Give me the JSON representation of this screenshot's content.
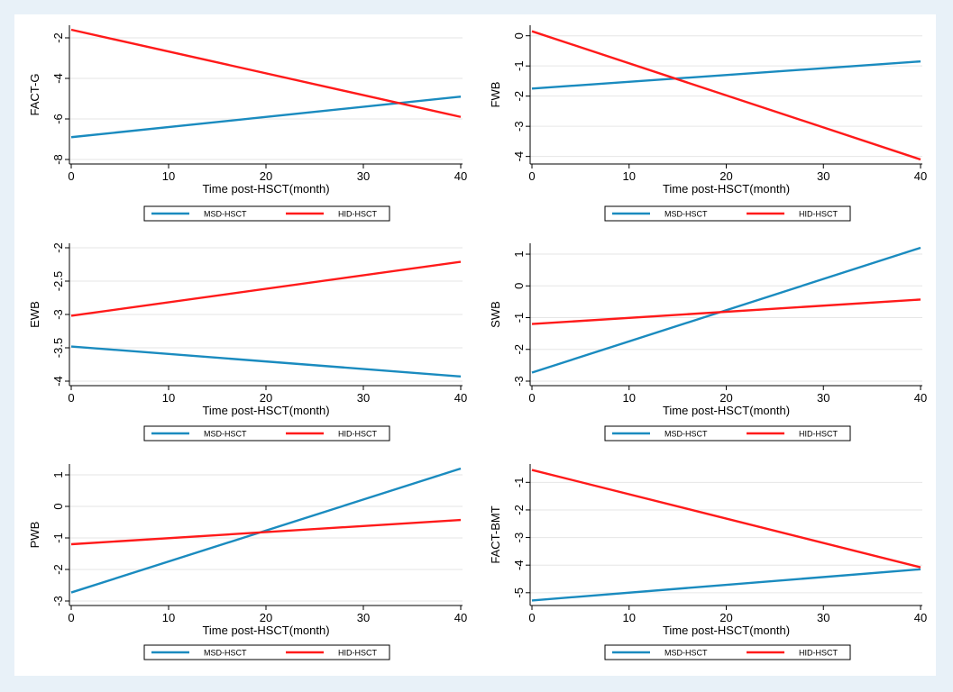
{
  "colors": {
    "msd": "#1a8bbf",
    "hid": "#ff1a1a",
    "background": "#e8f1f8"
  },
  "chart_data": [
    {
      "type": "line",
      "ylabel": "FACT-G",
      "xlabel": "Time post-HSCT(month)",
      "xlim": [
        0,
        40
      ],
      "ylim": [
        -8,
        -1.6
      ],
      "xticks": [
        0,
        10,
        20,
        30,
        40
      ],
      "yticks": [
        -8,
        -6,
        -4,
        -2
      ],
      "grid": true,
      "legend": "bottom",
      "series": [
        {
          "name": "MSD-HSCT",
          "color": "#1a8bbf",
          "x": [
            0,
            40
          ],
          "y": [
            -6.9,
            -4.9
          ]
        },
        {
          "name": "HID-HSCT",
          "color": "#ff1a1a",
          "x": [
            0,
            40
          ],
          "y": [
            -1.6,
            -5.9
          ]
        }
      ]
    },
    {
      "type": "line",
      "ylabel": "FWB",
      "xlabel": "Time post-HSCT(month)",
      "xlim": [
        0,
        40
      ],
      "ylim": [
        -4.1,
        0.2
      ],
      "xticks": [
        0,
        10,
        20,
        30,
        40
      ],
      "yticks": [
        -4,
        -3,
        -2,
        -1,
        0
      ],
      "grid": true,
      "legend": "bottom",
      "series": [
        {
          "name": "MSD-HSCT",
          "color": "#1a8bbf",
          "x": [
            0,
            40
          ],
          "y": [
            -1.75,
            -0.85
          ]
        },
        {
          "name": "HID-HSCT",
          "color": "#ff1a1a",
          "x": [
            0,
            40
          ],
          "y": [
            0.15,
            -4.1
          ]
        }
      ]
    },
    {
      "type": "line",
      "ylabel": "EWB",
      "xlabel": "Time post-HSCT(month)",
      "xlim": [
        0,
        40
      ],
      "ylim": [
        -4,
        -2
      ],
      "xticks": [
        0,
        10,
        20,
        30,
        40
      ],
      "yticks": [
        -4,
        -3.5,
        -3,
        -2.5,
        -2
      ],
      "grid": true,
      "legend": "bottom",
      "series": [
        {
          "name": "MSD-HSCT",
          "color": "#1a8bbf",
          "x": [
            0,
            40
          ],
          "y": [
            -3.48,
            -3.93
          ]
        },
        {
          "name": "HID-HSCT",
          "color": "#ff1a1a",
          "x": [
            0,
            40
          ],
          "y": [
            -3.02,
            -2.21
          ]
        }
      ]
    },
    {
      "type": "line",
      "ylabel": "SWB",
      "xlabel": "Time post-HSCT(month)",
      "xlim": [
        0,
        40
      ],
      "ylim": [
        -3,
        1.2
      ],
      "xticks": [
        0,
        10,
        20,
        30,
        40
      ],
      "yticks": [
        -3,
        -2,
        -1,
        0,
        1
      ],
      "grid": true,
      "legend": "bottom",
      "series": [
        {
          "name": "MSD-HSCT",
          "color": "#1a8bbf",
          "x": [
            0,
            40
          ],
          "y": [
            -2.73,
            1.2
          ]
        },
        {
          "name": "HID-HSCT",
          "color": "#ff1a1a",
          "x": [
            0,
            40
          ],
          "y": [
            -1.2,
            -0.43
          ]
        }
      ]
    },
    {
      "type": "line",
      "ylabel": "PWB",
      "xlabel": "Time post-HSCT(month)",
      "xlim": [
        0,
        40
      ],
      "ylim": [
        -3,
        1.2
      ],
      "xticks": [
        0,
        10,
        20,
        30,
        40
      ],
      "yticks": [
        -3,
        -2,
        -1,
        0,
        1
      ],
      "grid": true,
      "legend": "bottom",
      "series": [
        {
          "name": "MSD-HSCT",
          "color": "#1a8bbf",
          "x": [
            0,
            40
          ],
          "y": [
            -2.73,
            1.2
          ]
        },
        {
          "name": "HID-HSCT",
          "color": "#ff1a1a",
          "x": [
            0,
            40
          ],
          "y": [
            -1.2,
            -0.43
          ]
        }
      ]
    },
    {
      "type": "line",
      "ylabel": "FACT-BMT",
      "xlabel": "Time post-HSCT(month)",
      "xlim": [
        0,
        40
      ],
      "ylim": [
        -5.3,
        -0.5
      ],
      "xticks": [
        0,
        10,
        20,
        30,
        40
      ],
      "yticks": [
        -5,
        -4,
        -3,
        -2,
        -1
      ],
      "grid": true,
      "legend": "bottom",
      "series": [
        {
          "name": "MSD-HSCT",
          "color": "#1a8bbf",
          "x": [
            0,
            40
          ],
          "y": [
            -5.28,
            -4.15
          ]
        },
        {
          "name": "HID-HSCT",
          "color": "#ff1a1a",
          "x": [
            0,
            40
          ],
          "y": [
            -0.55,
            -4.08
          ]
        }
      ]
    }
  ]
}
